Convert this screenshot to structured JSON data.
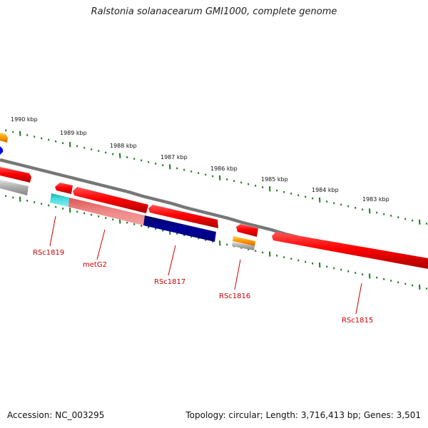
{
  "header": {
    "title": "Ralstonia solanacearum GMI1000, complete genome"
  },
  "footer": {
    "accession": "Accession: NC_003295",
    "summary": "Topology: circular; Length: 3,716,413 bp; Genes: 3,501"
  },
  "scale_labels": [
    "1990 kbp",
    "1989 kbp",
    "1988 kbp",
    "1987 kbp",
    "1986 kbp",
    "1985 kbp",
    "1984 kbp",
    "1983 kbp"
  ],
  "gene_labels": [
    "RSc1819",
    "metG2",
    "RSc1817",
    "RSc1816",
    "RSc1815"
  ],
  "colors": {
    "backbone": "#888888",
    "tick": "#1a7a1a",
    "gene": "#ee0000",
    "label": "#cc0000",
    "orange": "#ff9900",
    "grey": "#aaaaaa",
    "cyan": "#22cccc",
    "pink": "#ee7777",
    "navy": "#000088",
    "blue": "#0000ff"
  }
}
